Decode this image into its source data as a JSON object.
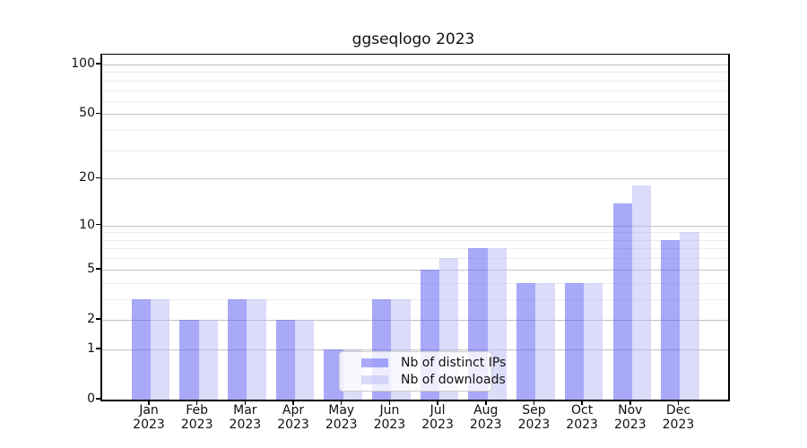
{
  "chart_data": {
    "type": "bar",
    "title": "ggseqlogo 2023",
    "scale": "log1p",
    "categories": [
      "Jan",
      "Feb",
      "Mar",
      "Apr",
      "May",
      "Jun",
      "Jul",
      "Aug",
      "Sep",
      "Oct",
      "Nov",
      "Dec"
    ],
    "year_label": "2023",
    "series": [
      {
        "name": "Nb of distinct IPs",
        "color": "rgba(83,83,245,0.5)",
        "values": [
          3,
          2,
          3,
          2,
          1,
          3,
          5,
          7,
          4,
          4,
          14,
          8
        ]
      },
      {
        "name": "Nb of downloads",
        "color": "rgba(183,183,245,0.5)",
        "values": [
          3,
          2,
          3,
          2,
          1,
          3,
          6,
          7,
          4,
          4,
          18,
          9
        ]
      }
    ],
    "y_ticks": [
      0,
      1,
      2,
      5,
      10,
      20,
      50,
      100
    ],
    "y_minor_gridlines": [
      3,
      4,
      6,
      7,
      8,
      9,
      30,
      40,
      60,
      70,
      80,
      90
    ],
    "ylim": [
      0,
      115
    ],
    "xlabel": "",
    "ylabel": "",
    "grid": "on",
    "legend_position": "bottom-center",
    "colors": {
      "major_grid": "#c3c3c3",
      "minor_grid": "#ececec",
      "axis": "#000000",
      "background": "#ffffff"
    }
  }
}
